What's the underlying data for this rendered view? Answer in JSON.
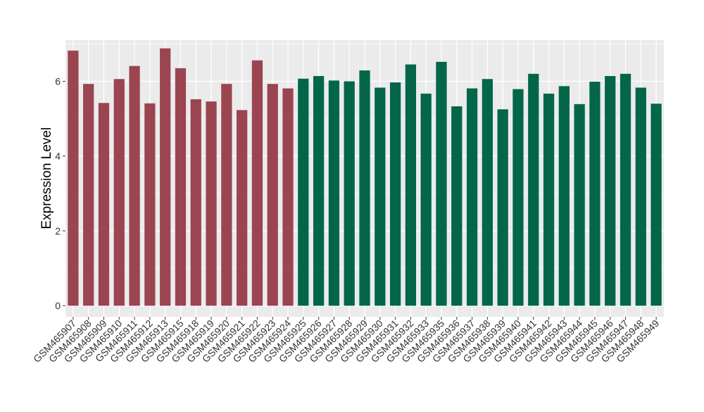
{
  "chart_data": {
    "type": "bar",
    "title": "",
    "xlabel": "",
    "ylabel": "Expression Level",
    "ylim": [
      -0.3,
      7.1
    ],
    "yticks": [
      0,
      2,
      4,
      6
    ],
    "grid": true,
    "colors": {
      "panel_background": "#EBEBEB",
      "grid_line": "#FFFFFF",
      "group_a": "#9B4551",
      "group_b": "#036649",
      "axis_text": "#333333",
      "axis_title": "#000000"
    },
    "categories": [
      "GSM465907",
      "GSM465908",
      "GSM465909",
      "GSM465910",
      "GSM465911",
      "GSM465912",
      "GSM465913",
      "GSM465915",
      "GSM465918",
      "GSM465919",
      "GSM465920",
      "GSM465921",
      "GSM465922",
      "GSM465923",
      "GSM465924",
      "GSM465925",
      "GSM465926",
      "GSM465927",
      "GSM465928",
      "GSM465929",
      "GSM465930",
      "GSM465931",
      "GSM465932",
      "GSM465933",
      "GSM465935",
      "GSM465936",
      "GSM465937",
      "GSM465938",
      "GSM465939",
      "GSM465940",
      "GSM465941",
      "GSM465942",
      "GSM465943",
      "GSM465944",
      "GSM465945",
      "GSM465946",
      "GSM465947",
      "GSM465948",
      "GSM465949"
    ],
    "values": [
      6.82,
      5.93,
      5.42,
      6.06,
      6.41,
      5.41,
      6.88,
      6.35,
      5.52,
      5.46,
      5.93,
      5.23,
      6.56,
      5.93,
      5.81,
      6.07,
      6.14,
      6.02,
      6.0,
      6.29,
      5.83,
      5.97,
      6.45,
      5.67,
      6.52,
      5.33,
      5.81,
      6.06,
      5.25,
      5.79,
      6.2,
      5.67,
      5.87,
      5.39,
      5.99,
      6.14,
      6.2,
      5.83,
      5.4
    ],
    "groups": [
      "a",
      "a",
      "a",
      "a",
      "a",
      "a",
      "a",
      "a",
      "a",
      "a",
      "a",
      "a",
      "a",
      "a",
      "a",
      "b",
      "b",
      "b",
      "b",
      "b",
      "b",
      "b",
      "b",
      "b",
      "b",
      "b",
      "b",
      "b",
      "b",
      "b",
      "b",
      "b",
      "b",
      "b",
      "b",
      "b",
      "b",
      "b",
      "b"
    ]
  }
}
